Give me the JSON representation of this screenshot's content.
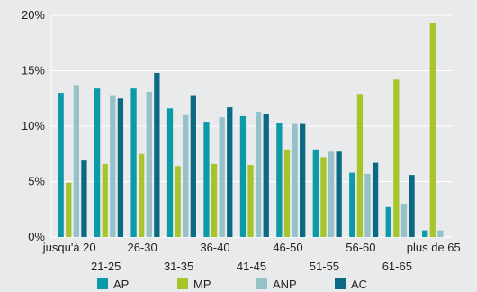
{
  "chart_data": {
    "type": "bar",
    "categories": [
      "jusqu'à 20",
      "21-25",
      "26-30",
      "31-35",
      "36-40",
      "41-45",
      "46-50",
      "51-55",
      "56-60",
      "61-65",
      "plus de 65"
    ],
    "series": [
      {
        "name": "AP",
        "color": "#0c9aa8",
        "values": [
          13.0,
          13.4,
          13.4,
          11.6,
          10.4,
          10.9,
          10.3,
          7.9,
          5.8,
          2.7,
          0.6
        ]
      },
      {
        "name": "MP",
        "color": "#a7c52a",
        "values": [
          4.9,
          6.6,
          7.5,
          6.4,
          6.6,
          6.5,
          7.9,
          7.2,
          12.9,
          14.2,
          19.3
        ]
      },
      {
        "name": "ANP",
        "color": "#95c1c9",
        "values": [
          13.7,
          12.8,
          13.1,
          11.0,
          10.8,
          11.3,
          10.2,
          7.7,
          5.7,
          3.0,
          0.6
        ]
      },
      {
        "name": "AC",
        "color": "#0b6a83",
        "values": [
          6.9,
          12.5,
          14.8,
          12.8,
          11.7,
          11.1,
          10.2,
          7.7,
          6.7,
          5.6,
          0.0
        ]
      }
    ],
    "ylim": [
      0,
      20
    ],
    "yticks": [
      "0%",
      "5%",
      "10%",
      "15%",
      "20%"
    ],
    "grid": true,
    "legend": "bottom"
  }
}
